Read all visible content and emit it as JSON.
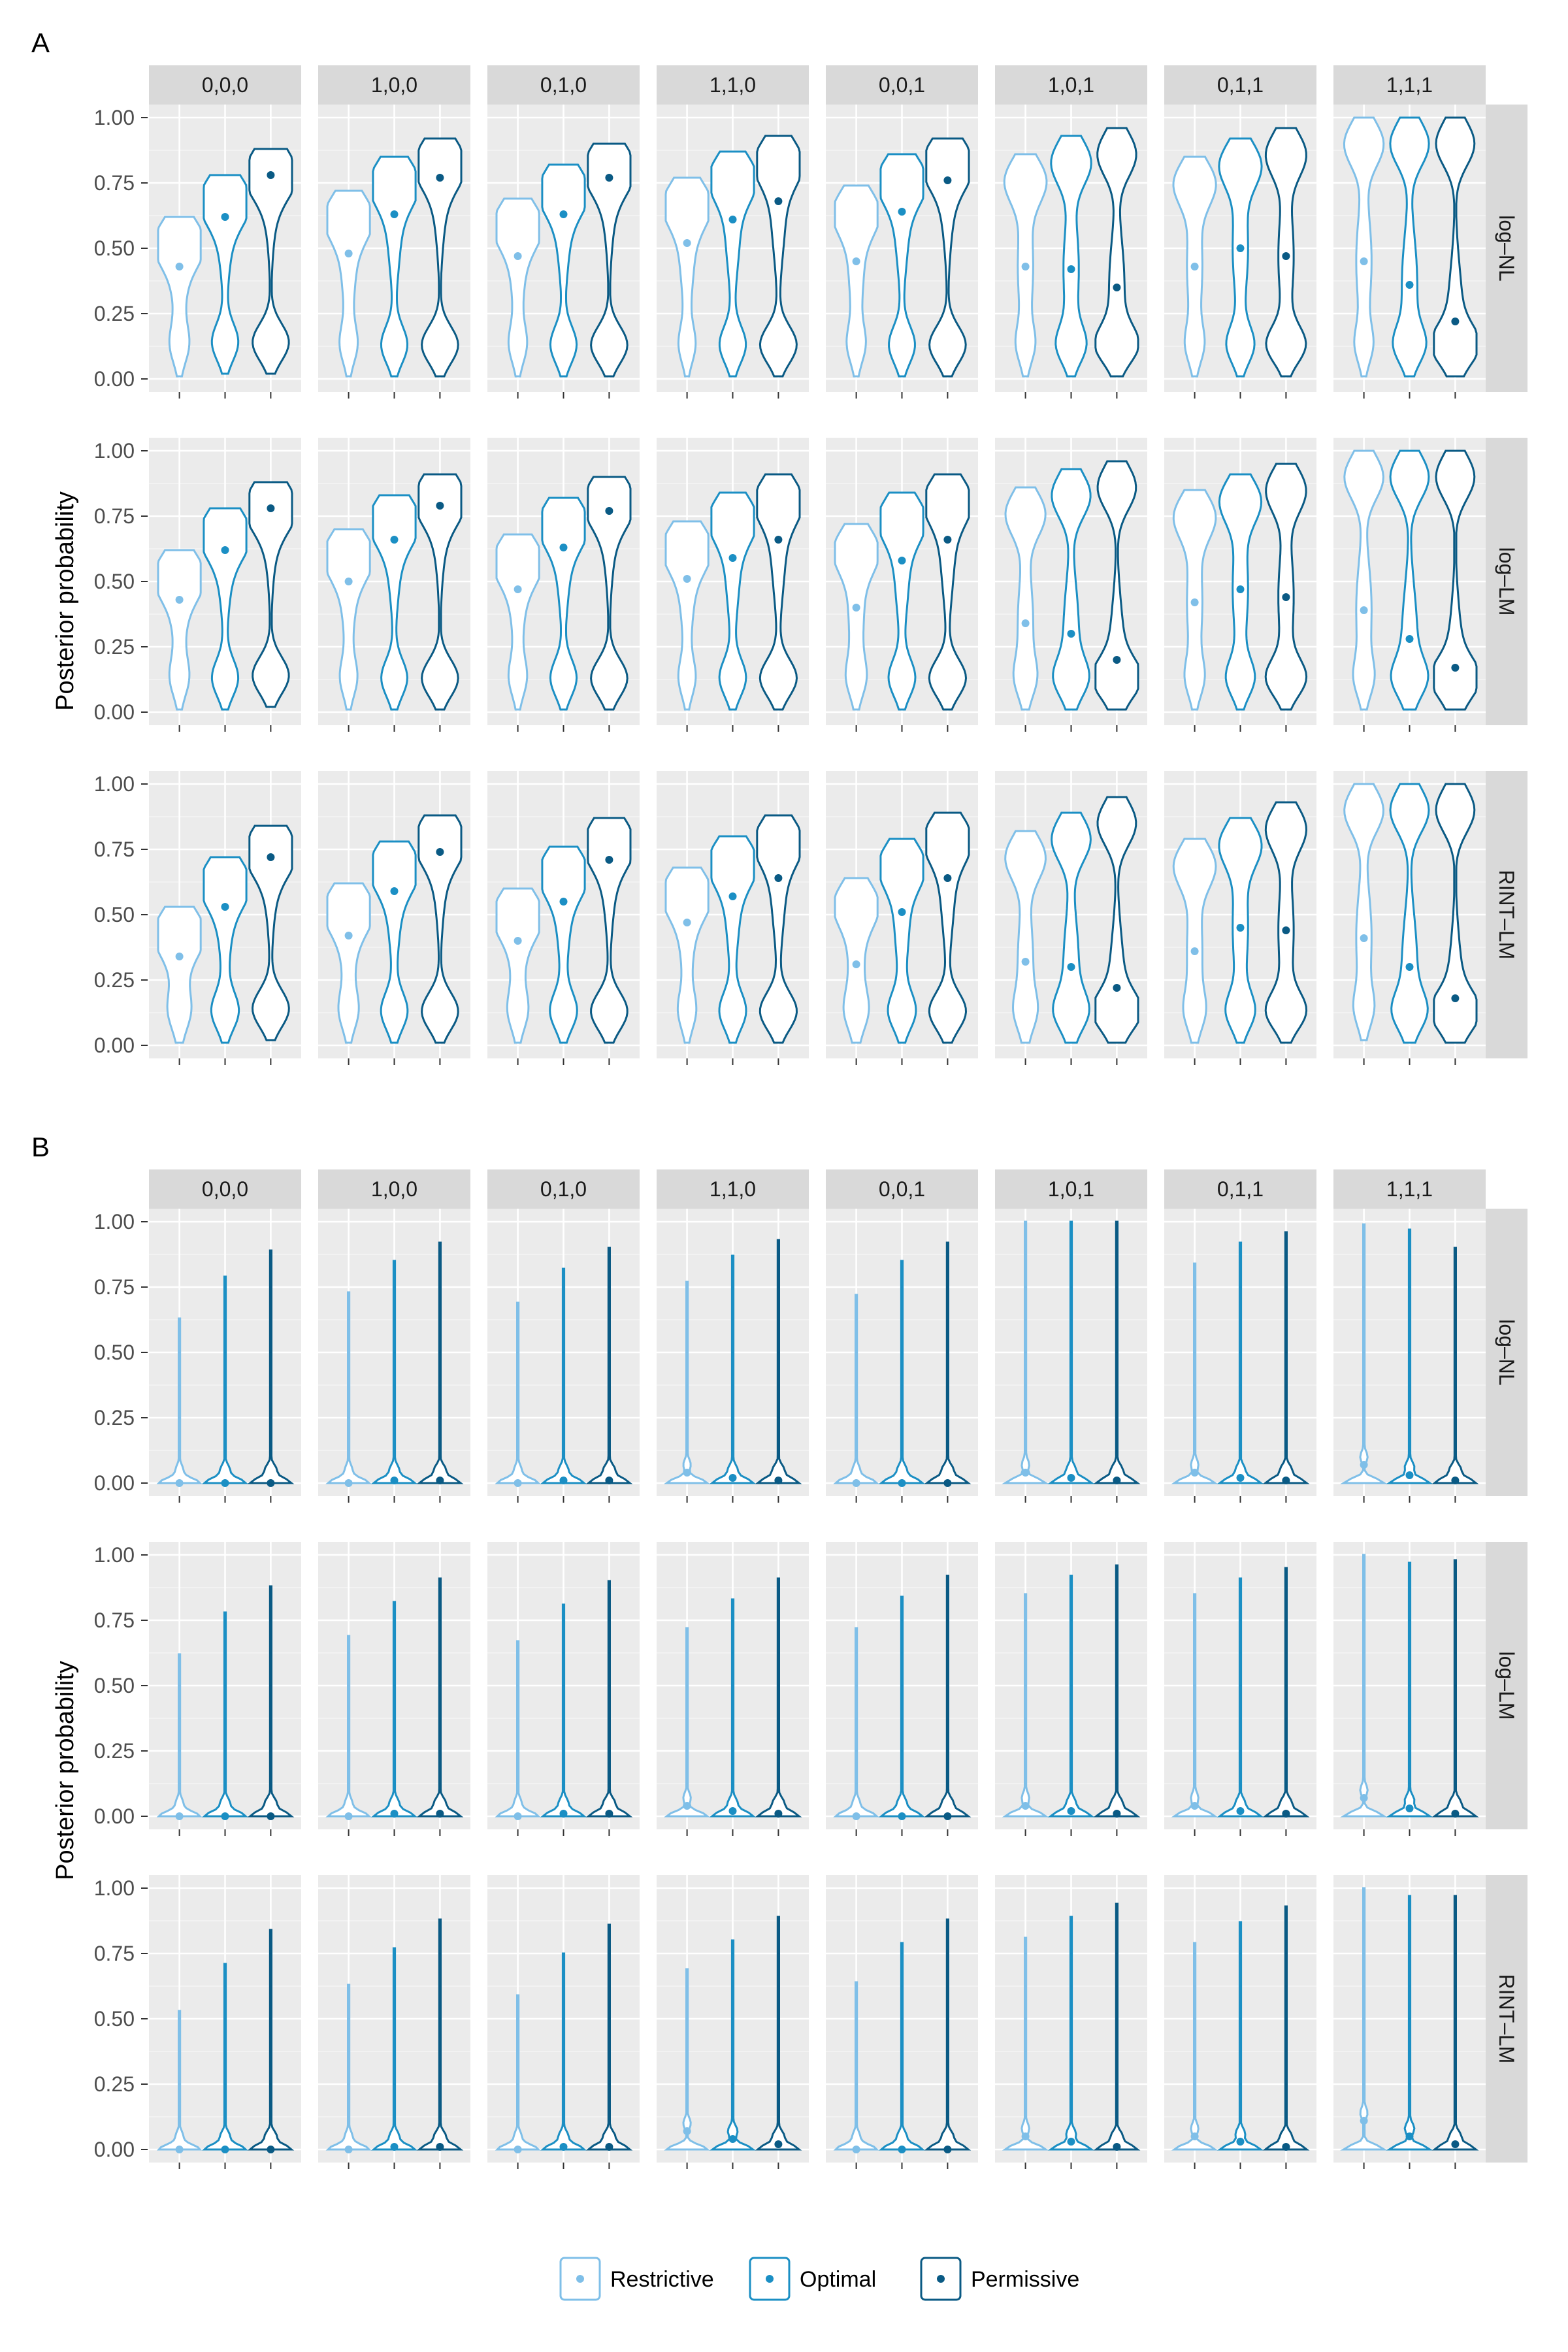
{
  "colors": {
    "Restrictive": "#7fbfe8",
    "Optimal": "#1b8fc4",
    "Permissive": "#0a5a84"
  },
  "figure": {
    "ylabel": "Posterior probability",
    "legend": {
      "position": "bottom",
      "items": [
        "Restrictive",
        "Optimal",
        "Permissive"
      ]
    },
    "ylim": [
      0,
      1
    ],
    "y_ticks": [
      "0.00",
      "0.25",
      "0.50",
      "0.75",
      "1.00"
    ],
    "y_tick_values": [
      0,
      0.25,
      0.5,
      0.75,
      1.0
    ]
  },
  "chart_data": [
    {
      "type": "violin",
      "panel_label": "A",
      "column_facets": [
        "0,0,0",
        "1,0,0",
        "0,1,0",
        "1,1,0",
        "0,0,1",
        "1,0,1",
        "0,1,1",
        "1,1,1"
      ],
      "row_facets": [
        "log–NL",
        "log–LM",
        "RINT–LM"
      ],
      "series": [
        "Restrictive",
        "Optimal",
        "Permissive"
      ],
      "ylim": [
        0,
        1
      ],
      "points": {
        "log–NL": [
          [
            0.43,
            0.62,
            0.78
          ],
          [
            0.48,
            0.63,
            0.77
          ],
          [
            0.47,
            0.63,
            0.77
          ],
          [
            0.52,
            0.61,
            0.68
          ],
          [
            0.45,
            0.64,
            0.76
          ],
          [
            0.43,
            0.42,
            0.35
          ],
          [
            0.43,
            0.5,
            0.47
          ],
          [
            0.45,
            0.36,
            0.22
          ]
        ],
        "log–LM": [
          [
            0.43,
            0.62,
            0.78
          ],
          [
            0.5,
            0.66,
            0.79
          ],
          [
            0.47,
            0.63,
            0.77
          ],
          [
            0.51,
            0.59,
            0.66
          ],
          [
            0.4,
            0.58,
            0.66
          ],
          [
            0.34,
            0.3,
            0.2
          ],
          [
            0.42,
            0.47,
            0.44
          ],
          [
            0.39,
            0.28,
            0.17
          ]
        ],
        "RINT–LM": [
          [
            0.34,
            0.53,
            0.72
          ],
          [
            0.42,
            0.59,
            0.74
          ],
          [
            0.4,
            0.55,
            0.71
          ],
          [
            0.47,
            0.57,
            0.64
          ],
          [
            0.31,
            0.51,
            0.64
          ],
          [
            0.32,
            0.3,
            0.22
          ],
          [
            0.36,
            0.45,
            0.44
          ],
          [
            0.41,
            0.3,
            0.18
          ]
        ]
      },
      "ranges": {
        "log–NL": [
          [
            [
              0.01,
              0.62
            ],
            [
              0.02,
              0.78
            ],
            [
              0.02,
              0.88
            ]
          ],
          [
            [
              0.01,
              0.72
            ],
            [
              0.01,
              0.85
            ],
            [
              0.01,
              0.92
            ]
          ],
          [
            [
              0.01,
              0.69
            ],
            [
              0.01,
              0.82
            ],
            [
              0.01,
              0.9
            ]
          ],
          [
            [
              0.01,
              0.77
            ],
            [
              0.01,
              0.87
            ],
            [
              0.01,
              0.93
            ]
          ],
          [
            [
              0.01,
              0.74
            ],
            [
              0.01,
              0.86
            ],
            [
              0.01,
              0.92
            ]
          ],
          [
            [
              0.01,
              0.86
            ],
            [
              0.01,
              0.93
            ],
            [
              0.01,
              0.96
            ]
          ],
          [
            [
              0.01,
              0.85
            ],
            [
              0.01,
              0.92
            ],
            [
              0.01,
              0.96
            ]
          ],
          [
            [
              0.01,
              1.0
            ],
            [
              0.01,
              1.0
            ],
            [
              0.01,
              1.0
            ]
          ]
        ],
        "log–LM": [
          [
            [
              0.01,
              0.62
            ],
            [
              0.01,
              0.78
            ],
            [
              0.02,
              0.88
            ]
          ],
          [
            [
              0.01,
              0.7
            ],
            [
              0.01,
              0.83
            ],
            [
              0.01,
              0.91
            ]
          ],
          [
            [
              0.01,
              0.68
            ],
            [
              0.01,
              0.82
            ],
            [
              0.01,
              0.9
            ]
          ],
          [
            [
              0.01,
              0.73
            ],
            [
              0.01,
              0.84
            ],
            [
              0.01,
              0.91
            ]
          ],
          [
            [
              0.01,
              0.72
            ],
            [
              0.01,
              0.84
            ],
            [
              0.01,
              0.91
            ]
          ],
          [
            [
              0.01,
              0.86
            ],
            [
              0.01,
              0.93
            ],
            [
              0.01,
              0.96
            ]
          ],
          [
            [
              0.01,
              0.85
            ],
            [
              0.01,
              0.91
            ],
            [
              0.01,
              0.95
            ]
          ],
          [
            [
              0.01,
              1.0
            ],
            [
              0.01,
              1.0
            ],
            [
              0.01,
              1.0
            ]
          ]
        ],
        "RINT–LM": [
          [
            [
              0.01,
              0.53
            ],
            [
              0.01,
              0.72
            ],
            [
              0.02,
              0.84
            ]
          ],
          [
            [
              0.01,
              0.62
            ],
            [
              0.01,
              0.78
            ],
            [
              0.01,
              0.88
            ]
          ],
          [
            [
              0.01,
              0.6
            ],
            [
              0.01,
              0.76
            ],
            [
              0.01,
              0.87
            ]
          ],
          [
            [
              0.01,
              0.68
            ],
            [
              0.01,
              0.8
            ],
            [
              0.01,
              0.88
            ]
          ],
          [
            [
              0.01,
              0.64
            ],
            [
              0.01,
              0.79
            ],
            [
              0.01,
              0.89
            ]
          ],
          [
            [
              0.01,
              0.82
            ],
            [
              0.01,
              0.89
            ],
            [
              0.01,
              0.95
            ]
          ],
          [
            [
              0.01,
              0.79
            ],
            [
              0.01,
              0.87
            ],
            [
              0.01,
              0.93
            ]
          ],
          [
            [
              0.02,
              1.0
            ],
            [
              0.01,
              1.0
            ],
            [
              0.01,
              1.0
            ]
          ]
        ]
      },
      "shape": "wide"
    },
    {
      "type": "violin",
      "panel_label": "B",
      "column_facets": [
        "0,0,0",
        "1,0,0",
        "0,1,0",
        "1,1,0",
        "0,0,1",
        "1,0,1",
        "0,1,1",
        "1,1,1"
      ],
      "row_facets": [
        "log–NL",
        "log–LM",
        "RINT–LM"
      ],
      "series": [
        "Restrictive",
        "Optimal",
        "Permissive"
      ],
      "ylim": [
        0,
        1
      ],
      "points": {
        "log–NL": [
          [
            0.0,
            0.0,
            0.0
          ],
          [
            0.0,
            0.01,
            0.01
          ],
          [
            0.0,
            0.01,
            0.01
          ],
          [
            0.04,
            0.02,
            0.01
          ],
          [
            0.0,
            0.0,
            0.0
          ],
          [
            0.04,
            0.02,
            0.01
          ],
          [
            0.04,
            0.02,
            0.01
          ],
          [
            0.07,
            0.03,
            0.01
          ]
        ],
        "log–LM": [
          [
            0.0,
            0.0,
            0.0
          ],
          [
            0.0,
            0.01,
            0.01
          ],
          [
            0.0,
            0.01,
            0.01
          ],
          [
            0.04,
            0.02,
            0.01
          ],
          [
            0.0,
            0.0,
            0.0
          ],
          [
            0.04,
            0.02,
            0.01
          ],
          [
            0.04,
            0.02,
            0.01
          ],
          [
            0.07,
            0.03,
            0.01
          ]
        ],
        "RINT–LM": [
          [
            0.0,
            0.0,
            0.0
          ],
          [
            0.0,
            0.01,
            0.01
          ],
          [
            0.0,
            0.01,
            0.01
          ],
          [
            0.07,
            0.04,
            0.02
          ],
          [
            0.0,
            0.0,
            0.0
          ],
          [
            0.05,
            0.03,
            0.01
          ],
          [
            0.05,
            0.03,
            0.01
          ],
          [
            0.11,
            0.05,
            0.02
          ]
        ]
      },
      "ranges": {
        "log–NL": [
          [
            [
              0,
              0.63
            ],
            [
              0,
              0.79
            ],
            [
              0,
              0.89
            ]
          ],
          [
            [
              0,
              0.73
            ],
            [
              0,
              0.85
            ],
            [
              0,
              0.92
            ]
          ],
          [
            [
              0,
              0.69
            ],
            [
              0,
              0.82
            ],
            [
              0,
              0.9
            ]
          ],
          [
            [
              0,
              0.77
            ],
            [
              0,
              0.87
            ],
            [
              0,
              0.93
            ]
          ],
          [
            [
              0,
              0.72
            ],
            [
              0,
              0.85
            ],
            [
              0,
              0.92
            ]
          ],
          [
            [
              0,
              1.0
            ],
            [
              0,
              1.0
            ],
            [
              0,
              1.0
            ]
          ],
          [
            [
              0,
              0.84
            ],
            [
              0,
              0.92
            ],
            [
              0,
              0.96
            ]
          ],
          [
            [
              0,
              0.99
            ],
            [
              0,
              0.97
            ],
            [
              0,
              0.9
            ]
          ]
        ],
        "log–LM": [
          [
            [
              0,
              0.62
            ],
            [
              0,
              0.78
            ],
            [
              0,
              0.88
            ]
          ],
          [
            [
              0,
              0.69
            ],
            [
              0,
              0.82
            ],
            [
              0,
              0.91
            ]
          ],
          [
            [
              0,
              0.67
            ],
            [
              0,
              0.81
            ],
            [
              0,
              0.9
            ]
          ],
          [
            [
              0,
              0.72
            ],
            [
              0,
              0.83
            ],
            [
              0,
              0.91
            ]
          ],
          [
            [
              0,
              0.72
            ],
            [
              0,
              0.84
            ],
            [
              0,
              0.92
            ]
          ],
          [
            [
              0,
              0.85
            ],
            [
              0,
              0.92
            ],
            [
              0,
              0.96
            ]
          ],
          [
            [
              0,
              0.85
            ],
            [
              0,
              0.91
            ],
            [
              0,
              0.95
            ]
          ],
          [
            [
              0,
              1.0
            ],
            [
              0,
              0.97
            ],
            [
              0,
              0.98
            ]
          ]
        ],
        "RINT–LM": [
          [
            [
              0,
              0.53
            ],
            [
              0,
              0.71
            ],
            [
              0,
              0.84
            ]
          ],
          [
            [
              0,
              0.63
            ],
            [
              0,
              0.77
            ],
            [
              0,
              0.88
            ]
          ],
          [
            [
              0,
              0.59
            ],
            [
              0,
              0.75
            ],
            [
              0,
              0.86
            ]
          ],
          [
            [
              0,
              0.69
            ],
            [
              0,
              0.8
            ],
            [
              0,
              0.89
            ]
          ],
          [
            [
              0,
              0.64
            ],
            [
              0,
              0.79
            ],
            [
              0,
              0.88
            ]
          ],
          [
            [
              0,
              0.81
            ],
            [
              0,
              0.89
            ],
            [
              0,
              0.94
            ]
          ],
          [
            [
              0,
              0.79
            ],
            [
              0,
              0.87
            ],
            [
              0,
              0.93
            ]
          ],
          [
            [
              0,
              1.0
            ],
            [
              0,
              0.97
            ],
            [
              0,
              0.97
            ]
          ]
        ]
      },
      "shape": "spike"
    }
  ]
}
